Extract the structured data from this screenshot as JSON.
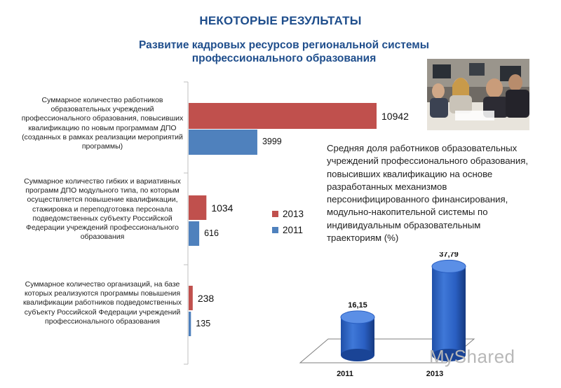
{
  "header": {
    "title": "НЕКОТОРЫЕ РЕЗУЛЬТАТЫ",
    "subtitle": "Развитие кадровых ресурсов региональной системы профессионального образования"
  },
  "right_panel": {
    "text": "Средняя доля работников образовательных учреждений профессионального образования, повысивших квалификацию на основе разработанных механизмов персонифицированного финансирования, модульно-накопительной системы по индивидуальным образовательным траекториям (%)"
  },
  "watermark": "MyShared",
  "colors": {
    "series_2013": "#c0504d",
    "series_2011": "#4f81bd",
    "title": "#1f4e8c"
  },
  "chart_data": [
    {
      "type": "bar",
      "orientation": "horizontal",
      "categories": [
        "Суммарное количество работников образовательных учреждений профессионального образования, повысивших квалификацию по новым программам ДПО (созданных в рамках реализации мероприятий программы)",
        "Суммарное количество гибких и вариативных программ ДПО модульного типа, по которым осуществляется повышение квалификации, стажировка и переподготовка персонала подведомственных субъекту Российской Федерации учреждений профессионального образования",
        "Суммарное количество организаций, на базе которых реализуются программы повышения квалификации работников подведомственных субъекту Российской Федерации учреждений профессионального образования"
      ],
      "series": [
        {
          "name": "2013",
          "values": [
            10942,
            1034,
            238
          ],
          "labels": [
            "10942",
            "1034",
            "238"
          ]
        },
        {
          "name": "2011",
          "values": [
            3999,
            616,
            135
          ],
          "labels": [
            "3999",
            "616",
            "135"
          ]
        }
      ],
      "legend": "right-middle"
    },
    {
      "type": "bar",
      "style": "3d-cylinder",
      "categories": [
        "2011",
        "2013"
      ],
      "values": [
        16.15,
        37.79
      ],
      "labels": [
        "16,15",
        "37,79"
      ],
      "ylim": [
        0,
        40
      ]
    }
  ]
}
